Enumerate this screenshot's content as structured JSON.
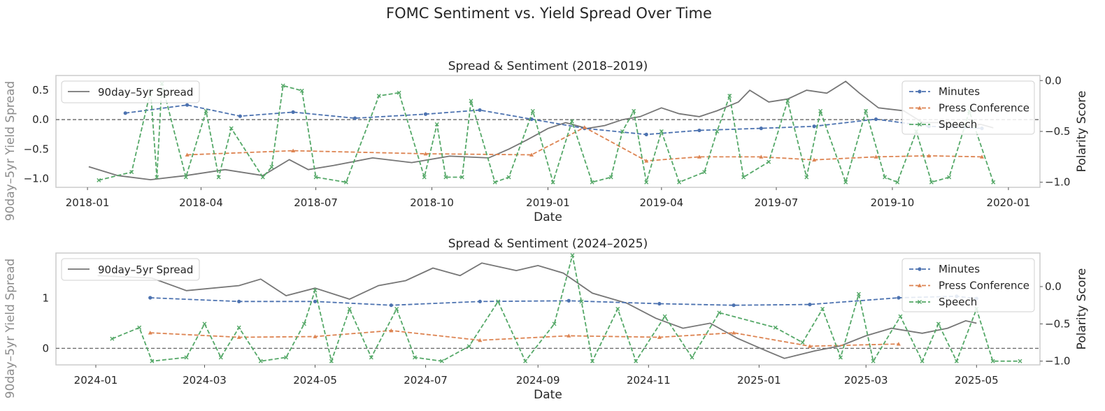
{
  "figure": {
    "title": "FOMC Sentiment vs. Yield Spread Over Time"
  },
  "colors": {
    "spread": "#767676",
    "minutes": "#4c72b0",
    "press": "#dd8452",
    "speech": "#55a868",
    "frame": "#cccccc",
    "zero_line": "#555555",
    "left_axis_label": "#8c8c8c"
  },
  "chart_data": [
    {
      "type": "line",
      "title": "Spread & Sentiment (2018–2019)",
      "xlabel": "Date",
      "ylabel": "90day–5yr Yield Spread",
      "y2label": "Polarity Score",
      "xlim": [
        "2017-12-07",
        "2020-01-26"
      ],
      "ylim": [
        -1.15,
        0.75
      ],
      "y2lim": [
        -1.05,
        0.05
      ],
      "x_ticks": [
        "2018-01",
        "2018-04",
        "2018-07",
        "2018-10",
        "2019-01",
        "2019-04",
        "2019-07",
        "2019-10",
        "2020-01"
      ],
      "y_ticks": [
        -1.0,
        -0.5,
        0.0,
        0.5
      ],
      "y_tick_labels": [
        "−1.0",
        "−0.5",
        "0.0",
        "0.5"
      ],
      "y2_ticks": [
        -1.0,
        -0.5,
        0.0
      ],
      "y2_tick_labels": [
        "−1.0",
        "−0.5",
        "0.0"
      ],
      "zero_line": 0,
      "legend_left": [
        "90day–5yr Spread"
      ],
      "legend_right": [
        "Minutes",
        "Press Conference",
        "Speech"
      ],
      "spread": {
        "name": "90day–5yr Spread",
        "points": [
          [
            "2018-01-02",
            -0.8
          ],
          [
            "2018-01-25",
            -0.95
          ],
          [
            "2018-02-20",
            -1.02
          ],
          [
            "2018-03-20",
            -0.95
          ],
          [
            "2018-04-20",
            -0.85
          ],
          [
            "2018-05-20",
            -0.95
          ],
          [
            "2018-06-10",
            -0.68
          ],
          [
            "2018-06-25",
            -0.85
          ],
          [
            "2018-07-15",
            -0.78
          ],
          [
            "2018-08-15",
            -0.65
          ],
          [
            "2018-09-15",
            -0.73
          ],
          [
            "2018-10-15",
            -0.62
          ],
          [
            "2018-11-15",
            -0.65
          ],
          [
            "2018-12-01",
            -0.5
          ],
          [
            "2018-12-15",
            -0.35
          ],
          [
            "2019-01-01",
            -0.15
          ],
          [
            "2019-01-15",
            -0.05
          ],
          [
            "2019-02-01",
            -0.15
          ],
          [
            "2019-02-15",
            -0.1
          ],
          [
            "2019-03-01",
            0.0
          ],
          [
            "2019-03-15",
            0.05
          ],
          [
            "2019-04-01",
            0.2
          ],
          [
            "2019-04-15",
            0.1
          ],
          [
            "2019-05-01",
            0.05
          ],
          [
            "2019-05-15",
            0.15
          ],
          [
            "2019-06-01",
            0.3
          ],
          [
            "2019-06-10",
            0.5
          ],
          [
            "2019-06-25",
            0.3
          ],
          [
            "2019-07-10",
            0.35
          ],
          [
            "2019-07-25",
            0.5
          ],
          [
            "2019-08-10",
            0.45
          ],
          [
            "2019-08-25",
            0.65
          ],
          [
            "2019-09-05",
            0.45
          ],
          [
            "2019-09-20",
            0.2
          ],
          [
            "2019-10-10",
            0.15
          ],
          [
            "2019-10-25",
            -0.05
          ],
          [
            "2019-11-10",
            -0.05
          ],
          [
            "2019-11-25",
            -0.12
          ],
          [
            "2019-12-10",
            -0.08
          ],
          [
            "2019-12-20",
            -0.14
          ]
        ]
      },
      "series": [
        {
          "name": "Minutes",
          "marker": "circle",
          "points": [
            [
              "2018-01-31",
              -0.32
            ],
            [
              "2018-03-21",
              -0.24
            ],
            [
              "2018-05-02",
              -0.35
            ],
            [
              "2018-06-13",
              -0.31
            ],
            [
              "2018-08-01",
              -0.37
            ],
            [
              "2018-09-26",
              -0.33
            ],
            [
              "2018-11-08",
              -0.29
            ],
            [
              "2018-12-19",
              -0.38
            ],
            [
              "2019-01-30",
              -0.47
            ],
            [
              "2019-03-20",
              -0.53
            ],
            [
              "2019-05-01",
              -0.49
            ],
            [
              "2019-06-19",
              -0.47
            ],
            [
              "2019-07-31",
              -0.45
            ],
            [
              "2019-09-18",
              -0.38
            ],
            [
              "2019-10-30",
              -0.45
            ],
            [
              "2019-12-11",
              -0.47
            ]
          ]
        },
        {
          "name": "Press Conference",
          "marker": "triangle",
          "points": [
            [
              "2018-03-21",
              -0.73
            ],
            [
              "2018-06-13",
              -0.69
            ],
            [
              "2018-09-26",
              -0.72
            ],
            [
              "2018-12-19",
              -0.73
            ],
            [
              "2019-01-30",
              -0.46
            ],
            [
              "2019-03-20",
              -0.79
            ],
            [
              "2019-05-01",
              -0.75
            ],
            [
              "2019-06-19",
              -0.75
            ],
            [
              "2019-07-31",
              -0.78
            ],
            [
              "2019-09-18",
              -0.75
            ],
            [
              "2019-10-30",
              -0.74
            ],
            [
              "2019-12-11",
              -0.75
            ]
          ]
        },
        {
          "name": "Speech",
          "marker": "x",
          "points": [
            [
              "2018-01-10",
              -0.98
            ],
            [
              "2018-02-05",
              -0.9
            ],
            [
              "2018-02-20",
              -0.1
            ],
            [
              "2018-02-25",
              -0.95
            ],
            [
              "2018-03-01",
              -0.03
            ],
            [
              "2018-03-20",
              -0.95
            ],
            [
              "2018-04-05",
              -0.3
            ],
            [
              "2018-04-15",
              -0.95
            ],
            [
              "2018-04-25",
              -0.47
            ],
            [
              "2018-05-20",
              -0.95
            ],
            [
              "2018-05-27",
              -0.85
            ],
            [
              "2018-06-05",
              -0.05
            ],
            [
              "2018-06-20",
              -0.1
            ],
            [
              "2018-07-01",
              -0.95
            ],
            [
              "2018-07-25",
              -1.0
            ],
            [
              "2018-08-20",
              -0.15
            ],
            [
              "2018-09-05",
              -0.12
            ],
            [
              "2018-09-25",
              -0.95
            ],
            [
              "2018-10-05",
              -0.43
            ],
            [
              "2018-10-12",
              -0.95
            ],
            [
              "2018-10-25",
              -0.95
            ],
            [
              "2018-11-01",
              -0.2
            ],
            [
              "2018-11-20",
              -1.0
            ],
            [
              "2018-12-01",
              -0.95
            ],
            [
              "2018-12-20",
              -0.3
            ],
            [
              "2019-01-05",
              -1.0
            ],
            [
              "2019-01-20",
              -0.4
            ],
            [
              "2019-02-05",
              -1.0
            ],
            [
              "2019-02-20",
              -0.95
            ],
            [
              "2019-03-01",
              -0.5
            ],
            [
              "2019-03-10",
              -0.3
            ],
            [
              "2019-03-20",
              -1.0
            ],
            [
              "2019-04-01",
              -0.5
            ],
            [
              "2019-04-15",
              -1.0
            ],
            [
              "2019-05-05",
              -0.9
            ],
            [
              "2019-05-15",
              -0.5
            ],
            [
              "2019-05-25",
              -0.15
            ],
            [
              "2019-06-05",
              -0.95
            ],
            [
              "2019-06-25",
              -0.8
            ],
            [
              "2019-07-10",
              -0.2
            ],
            [
              "2019-07-25",
              -0.95
            ],
            [
              "2019-08-05",
              -0.3
            ],
            [
              "2019-08-25",
              -1.0
            ],
            [
              "2019-09-10",
              -0.3
            ],
            [
              "2019-09-25",
              -0.95
            ],
            [
              "2019-10-05",
              -1.0
            ],
            [
              "2019-10-20",
              -0.5
            ],
            [
              "2019-11-01",
              -1.0
            ],
            [
              "2019-11-15",
              -0.95
            ],
            [
              "2019-12-01",
              -0.3
            ],
            [
              "2019-12-20",
              -1.0
            ]
          ]
        }
      ]
    },
    {
      "type": "line",
      "title": "Spread & Sentiment (2024–2025)",
      "xlabel": "Date",
      "ylabel": "90day–5yr Yield Spread",
      "y2label": "Polarity Score",
      "xlim": [
        "2023-12-10",
        "2025-06-05"
      ],
      "ylim": [
        -0.33,
        1.9
      ],
      "y2lim": [
        -1.05,
        0.45
      ],
      "x_ticks": [
        "2024-01",
        "2024-03",
        "2024-05",
        "2024-07",
        "2024-09",
        "2024-11",
        "2025-01",
        "2025-03",
        "2025-05"
      ],
      "y_ticks": [
        0,
        1
      ],
      "y_tick_labels": [
        "0",
        "1"
      ],
      "y2_ticks": [
        -1.0,
        -0.5,
        0.0
      ],
      "y2_tick_labels": [
        "−1.0",
        "−0.5",
        "0.0"
      ],
      "zero_line": 0,
      "legend_left": [
        "90day–5yr Spread"
      ],
      "legend_right": [
        "Minutes",
        "Press Conference",
        "Speech"
      ],
      "spread": {
        "name": "90day–5yr Spread",
        "points": [
          [
            "2024-01-02",
            1.45
          ],
          [
            "2024-02-01",
            1.4
          ],
          [
            "2024-02-20",
            1.15
          ],
          [
            "2024-03-20",
            1.25
          ],
          [
            "2024-04-01",
            1.38
          ],
          [
            "2024-04-15",
            1.05
          ],
          [
            "2024-05-01",
            1.2
          ],
          [
            "2024-05-20",
            0.98
          ],
          [
            "2024-06-05",
            1.25
          ],
          [
            "2024-06-20",
            1.35
          ],
          [
            "2024-07-05",
            1.6
          ],
          [
            "2024-07-20",
            1.45
          ],
          [
            "2024-08-01",
            1.7
          ],
          [
            "2024-08-20",
            1.55
          ],
          [
            "2024-09-01",
            1.65
          ],
          [
            "2024-09-15",
            1.5
          ],
          [
            "2024-10-01",
            1.1
          ],
          [
            "2024-10-20",
            0.9
          ],
          [
            "2024-11-05",
            0.6
          ],
          [
            "2024-11-20",
            0.4
          ],
          [
            "2024-12-05",
            0.5
          ],
          [
            "2024-12-20",
            0.2
          ],
          [
            "2025-01-05",
            -0.05
          ],
          [
            "2025-01-15",
            -0.2
          ],
          [
            "2025-02-01",
            -0.05
          ],
          [
            "2025-02-15",
            0.05
          ],
          [
            "2025-03-01",
            0.25
          ],
          [
            "2025-03-15",
            0.4
          ],
          [
            "2025-04-01",
            0.3
          ],
          [
            "2025-04-15",
            0.4
          ],
          [
            "2025-04-25",
            0.55
          ],
          [
            "2025-05-01",
            0.5
          ]
        ]
      },
      "series": [
        {
          "name": "Minutes",
          "marker": "circle",
          "points": [
            [
              "2024-01-31",
              -0.15
            ],
            [
              "2024-03-20",
              -0.2
            ],
            [
              "2024-05-01",
              -0.2
            ],
            [
              "2024-06-12",
              -0.25
            ],
            [
              "2024-07-31",
              -0.2
            ],
            [
              "2024-09-18",
              -0.19
            ],
            [
              "2024-11-07",
              -0.23
            ],
            [
              "2024-12-18",
              -0.25
            ],
            [
              "2025-01-29",
              -0.24
            ],
            [
              "2025-03-19",
              -0.15
            ],
            [
              "2025-04-20",
              -0.13
            ],
            [
              "2025-05-01",
              -0.16
            ]
          ]
        },
        {
          "name": "Press Conference",
          "marker": "triangle",
          "points": [
            [
              "2024-01-31",
              -0.62
            ],
            [
              "2024-03-20",
              -0.68
            ],
            [
              "2024-05-01",
              -0.67
            ],
            [
              "2024-06-12",
              -0.59
            ],
            [
              "2024-07-31",
              -0.72
            ],
            [
              "2024-09-18",
              -0.66
            ],
            [
              "2024-11-07",
              -0.68
            ],
            [
              "2024-12-18",
              -0.62
            ],
            [
              "2025-01-29",
              -0.8
            ],
            [
              "2025-03-19",
              -0.77
            ]
          ]
        },
        {
          "name": "Speech",
          "marker": "x",
          "points": [
            [
              "2024-01-10",
              -0.7
            ],
            [
              "2024-01-25",
              -0.55
            ],
            [
              "2024-02-01",
              -1.0
            ],
            [
              "2024-02-20",
              -0.95
            ],
            [
              "2024-03-01",
              -0.5
            ],
            [
              "2024-03-10",
              -0.95
            ],
            [
              "2024-03-20",
              -0.55
            ],
            [
              "2024-04-01",
              -1.0
            ],
            [
              "2024-04-15",
              -0.95
            ],
            [
              "2024-04-25",
              -0.5
            ],
            [
              "2024-05-01",
              -0.05
            ],
            [
              "2024-05-10",
              -1.0
            ],
            [
              "2024-05-20",
              -0.3
            ],
            [
              "2024-06-01",
              -0.95
            ],
            [
              "2024-06-15",
              -0.3
            ],
            [
              "2024-06-25",
              -0.95
            ],
            [
              "2024-07-10",
              -1.0
            ],
            [
              "2024-07-25",
              -0.8
            ],
            [
              "2024-08-10",
              -0.2
            ],
            [
              "2024-08-25",
              -1.0
            ],
            [
              "2024-09-10",
              -0.5
            ],
            [
              "2024-09-20",
              0.42
            ],
            [
              "2024-09-25",
              -0.2
            ],
            [
              "2024-10-01",
              -1.0
            ],
            [
              "2024-10-15",
              -0.3
            ],
            [
              "2024-10-25",
              -1.0
            ],
            [
              "2024-11-10",
              -0.4
            ],
            [
              "2024-11-25",
              -0.95
            ],
            [
              "2024-12-10",
              -0.35
            ],
            [
              "2025-01-10",
              -0.55
            ],
            [
              "2025-01-25",
              -0.75
            ],
            [
              "2025-02-05",
              -0.3
            ],
            [
              "2025-02-15",
              -0.95
            ],
            [
              "2025-02-25",
              -0.1
            ],
            [
              "2025-03-05",
              -1.0
            ],
            [
              "2025-03-20",
              -0.4
            ],
            [
              "2025-04-01",
              -1.0
            ],
            [
              "2025-04-10",
              -0.5
            ],
            [
              "2025-04-20",
              -1.0
            ],
            [
              "2025-05-01",
              -0.3
            ],
            [
              "2025-05-10",
              -1.0
            ],
            [
              "2025-05-25",
              -1.0
            ]
          ]
        }
      ]
    }
  ]
}
